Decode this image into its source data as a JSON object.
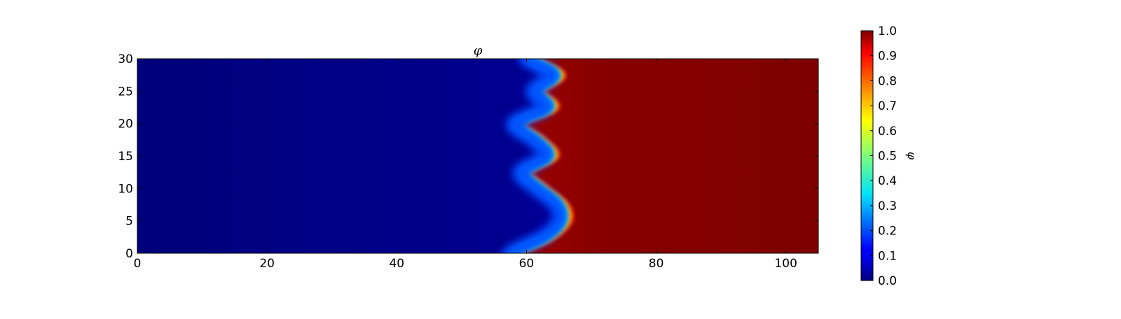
{
  "chart_data": {
    "type": "heatmap",
    "title": "φ",
    "colorbar_label": "φ",
    "colormap": "jet",
    "xlim": [
      0,
      105
    ],
    "ylim": [
      0,
      30
    ],
    "x_ticks": [
      "0",
      "20",
      "40",
      "60",
      "80",
      "100"
    ],
    "y_ticks": [
      "0",
      "5",
      "10",
      "15",
      "20",
      "25",
      "30"
    ],
    "colorbar_range": [
      0.0,
      1.0
    ],
    "colorbar_ticks": [
      "0.0",
      "0.1",
      "0.2",
      "0.3",
      "0.4",
      "0.5",
      "0.6",
      "0.7",
      "0.8",
      "0.9",
      "1.0"
    ],
    "field": {
      "description_values": "phase field phi: ~0 on the left, ~1 on the right, separated by a sinusoidal interface",
      "interface_y": [
        0,
        2.5,
        5,
        7.5,
        10,
        12.5,
        15,
        17.5,
        20,
        22.5,
        25,
        27.5,
        30
      ],
      "interface_x": [
        58.5,
        63.5,
        66,
        65.5,
        62.5,
        60,
        64,
        62,
        59,
        64,
        62,
        65,
        61
      ],
      "left_value": 0.02,
      "right_value": 0.98
    },
    "grid": false,
    "legend": "none"
  }
}
